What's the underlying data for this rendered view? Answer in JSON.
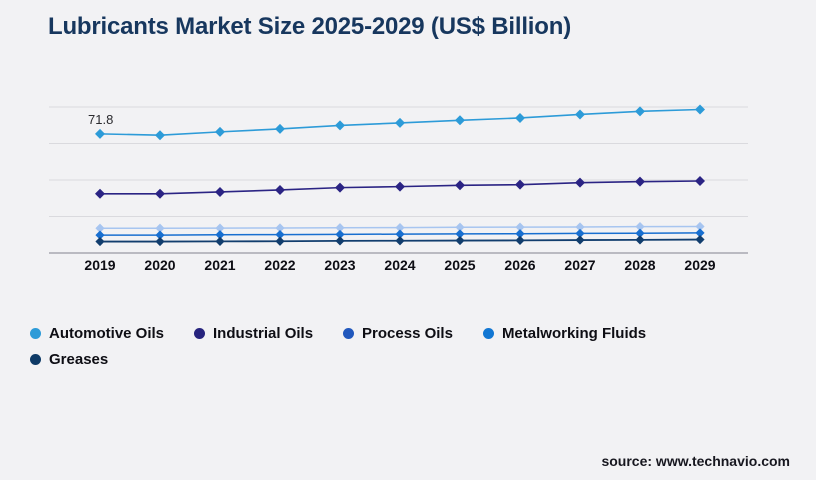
{
  "page": {
    "background": "#f2f2f4",
    "source_label": "source: www.technavio.com"
  },
  "chart_data": {
    "type": "line",
    "title": "Lubricants Market Size 2025-2029 (US$ Billion)",
    "xlabel": "",
    "ylabel": "",
    "x": [
      "2019",
      "2020",
      "2021",
      "2022",
      "2023",
      "2024",
      "2025",
      "2026",
      "2027",
      "2028",
      "2029"
    ],
    "ylim": [
      0,
      88
    ],
    "grid": {
      "horizontal_count": 5,
      "line_color": "#dadade",
      "axis_color": "#a8a8b0"
    },
    "legend_position": "bottom-left",
    "series": [
      {
        "id": "automotive-oils",
        "name": "Automotive Oils",
        "color": "#2d9bd8",
        "dot_color": "#2d9bd8",
        "line_width": 1.6,
        "marker_size": 5,
        "values": [
          71.8,
          71.0,
          73.0,
          74.8,
          76.9,
          78.4,
          80.0,
          81.4,
          83.5,
          85.4,
          86.5
        ]
      },
      {
        "id": "industrial-oils",
        "name": "Industrial Oils",
        "color": "#2b2484",
        "dot_color": "#26237d",
        "line_width": 1.6,
        "marker_size": 5,
        "values": [
          35.7,
          35.7,
          36.8,
          38.0,
          39.4,
          40.0,
          40.8,
          41.2,
          42.4,
          43.0,
          43.4
        ]
      },
      {
        "id": "process-oils",
        "name": "Process Oils",
        "color": "#a7c5f0",
        "dot_color": "#2158bd",
        "line_width": 1.5,
        "marker_size": 4.6,
        "values": [
          14.9,
          14.9,
          15.0,
          15.1,
          15.2,
          15.3,
          15.5,
          15.6,
          15.7,
          15.9,
          16.0
        ]
      },
      {
        "id": "metalworking-fluids",
        "name": "Metalworking Fluids",
        "color": "#186fd0",
        "dot_color": "#1277d3",
        "line_width": 1.5,
        "marker_size": 4.6,
        "values": [
          10.8,
          10.8,
          11.0,
          11.1,
          11.2,
          11.4,
          11.5,
          11.6,
          11.8,
          11.9,
          12.1
        ]
      },
      {
        "id": "greases",
        "name": "Greases",
        "color": "#123e6e",
        "dot_color": "#0e3a66",
        "line_width": 1.8,
        "marker_size": 4.6,
        "values": [
          6.9,
          6.9,
          7.0,
          7.1,
          7.3,
          7.4,
          7.5,
          7.6,
          7.8,
          7.9,
          8.1
        ]
      }
    ],
    "annotations": [
      {
        "text": "71.8",
        "series_index": 0,
        "point_index": 0,
        "dx": -12,
        "dy": -10
      }
    ]
  }
}
